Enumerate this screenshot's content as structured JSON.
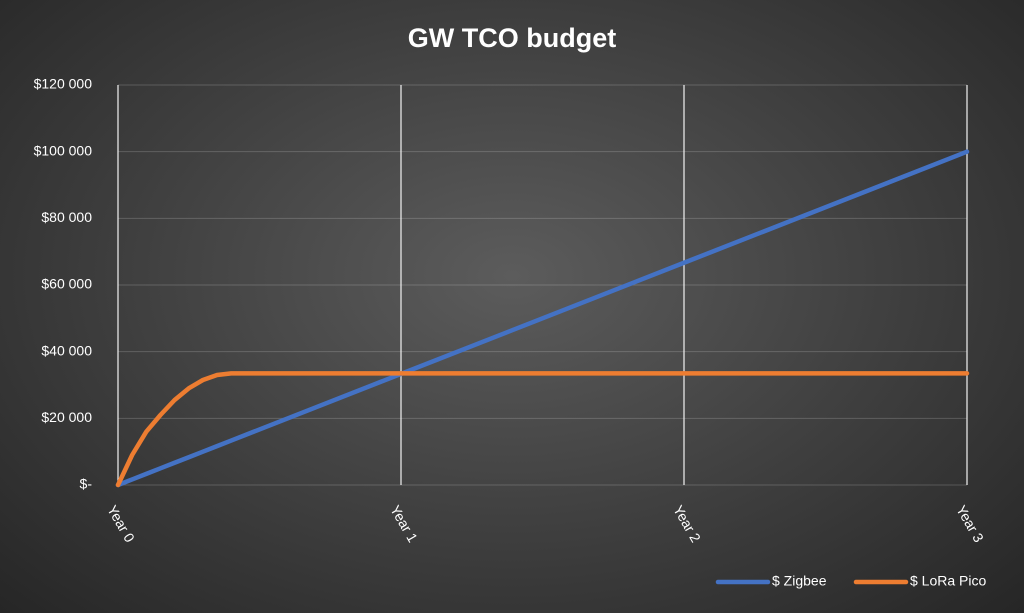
{
  "chart_data": {
    "type": "line",
    "title": "GW TCO budget",
    "x": [
      0,
      0.05,
      0.1,
      0.15,
      0.2,
      0.25,
      0.3,
      0.35,
      0.4,
      1,
      2,
      3
    ],
    "series": [
      {
        "name": "$ Zigbee",
        "color": "#4472c4",
        "values": [
          0,
          1667,
          3333,
          5000,
          6667,
          8333,
          10000,
          11667,
          13333,
          33333,
          66667,
          100000
        ]
      },
      {
        "name": "$ LoRa Pico",
        "color": "#ed7d31",
        "values": [
          0,
          9000,
          16000,
          21000,
          25500,
          29000,
          31500,
          33000,
          33500,
          33500,
          33500,
          33500
        ]
      }
    ],
    "xlim": [
      0,
      3
    ],
    "xticks": [
      {
        "value": 0,
        "label": "Year 0"
      },
      {
        "value": 1,
        "label": "Year 1"
      },
      {
        "value": 2,
        "label": "Year 2"
      },
      {
        "value": 3,
        "label": "Year 3"
      }
    ],
    "ylim": [
      0,
      120000
    ],
    "yticks": [
      {
        "value": 0,
        "label": "$-"
      },
      {
        "value": 20000,
        "label": "$20 000"
      },
      {
        "value": 40000,
        "label": "$40 000"
      },
      {
        "value": 60000,
        "label": "$60 000"
      },
      {
        "value": 80000,
        "label": "$80 000"
      },
      {
        "value": 100000,
        "label": "$100 000"
      },
      {
        "value": 120000,
        "label": "$120 000"
      }
    ],
    "grid": true,
    "legend": "bottom-right"
  }
}
